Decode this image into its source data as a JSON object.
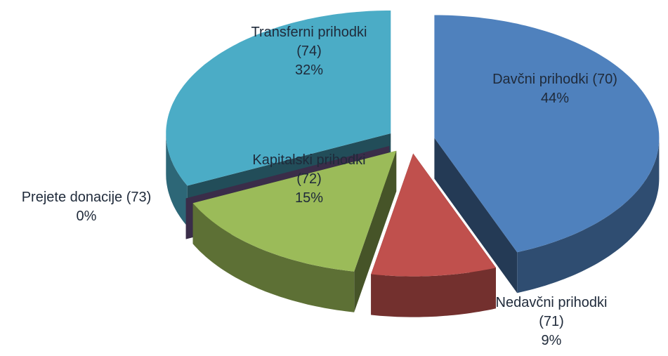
{
  "chart_data": {
    "type": "pie",
    "categories": [
      "Davčni prihodki (70)",
      "Nedavčni prihodki (71)",
      "Kapitalski prihodki (72)",
      "Prejete donacije (73)",
      "Transferni prihodki (74)"
    ],
    "values": [
      44,
      9,
      15,
      0,
      32
    ],
    "value_labels": [
      "44%",
      "9%",
      "15%",
      "0%",
      "32%"
    ],
    "colors": [
      "#4f81bd",
      "#c0504d",
      "#9bbb59",
      "#8064a2",
      "#4bacc6"
    ]
  }
}
